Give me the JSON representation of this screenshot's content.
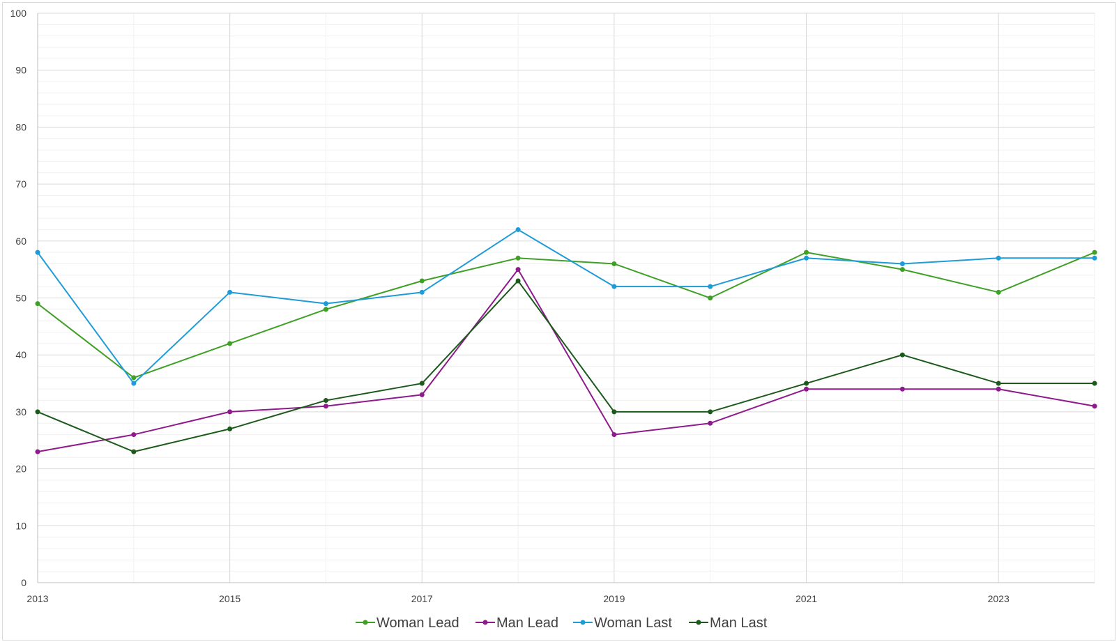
{
  "chart_data": {
    "type": "line",
    "title": "",
    "xlabel": "",
    "ylabel": "",
    "x": [
      2013,
      2014,
      2015,
      2016,
      2017,
      2018,
      2019,
      2020,
      2021,
      2022,
      2023,
      2024
    ],
    "x_tick_labels": [
      "2013",
      "2015",
      "2017",
      "2019",
      "2021",
      "2023"
    ],
    "y_tick_labels": [
      "0",
      "10",
      "20",
      "30",
      "40",
      "50",
      "60",
      "70",
      "80",
      "90",
      "100"
    ],
    "ylim": [
      0,
      100
    ],
    "xlim": [
      2013,
      2024
    ],
    "grid": true,
    "legend_position": "bottom",
    "series": [
      {
        "name": "Woman Lead",
        "color": "#3fa026",
        "values": [
          49,
          36,
          42,
          48,
          53,
          57,
          56,
          50,
          58,
          55,
          51,
          58
        ]
      },
      {
        "name": "Man Lead",
        "color": "#8e1a8c",
        "values": [
          23,
          26,
          30,
          31,
          33,
          55,
          26,
          28,
          34,
          34,
          34,
          31
        ]
      },
      {
        "name": "Woman Last",
        "color": "#1f9bd7",
        "values": [
          58,
          35,
          51,
          49,
          51,
          62,
          52,
          52,
          57,
          56,
          57,
          57
        ]
      },
      {
        "name": "Man Last",
        "color": "#1c5a1c",
        "values": [
          30,
          23,
          27,
          32,
          35,
          53,
          30,
          30,
          35,
          40,
          35,
          35
        ]
      }
    ]
  }
}
